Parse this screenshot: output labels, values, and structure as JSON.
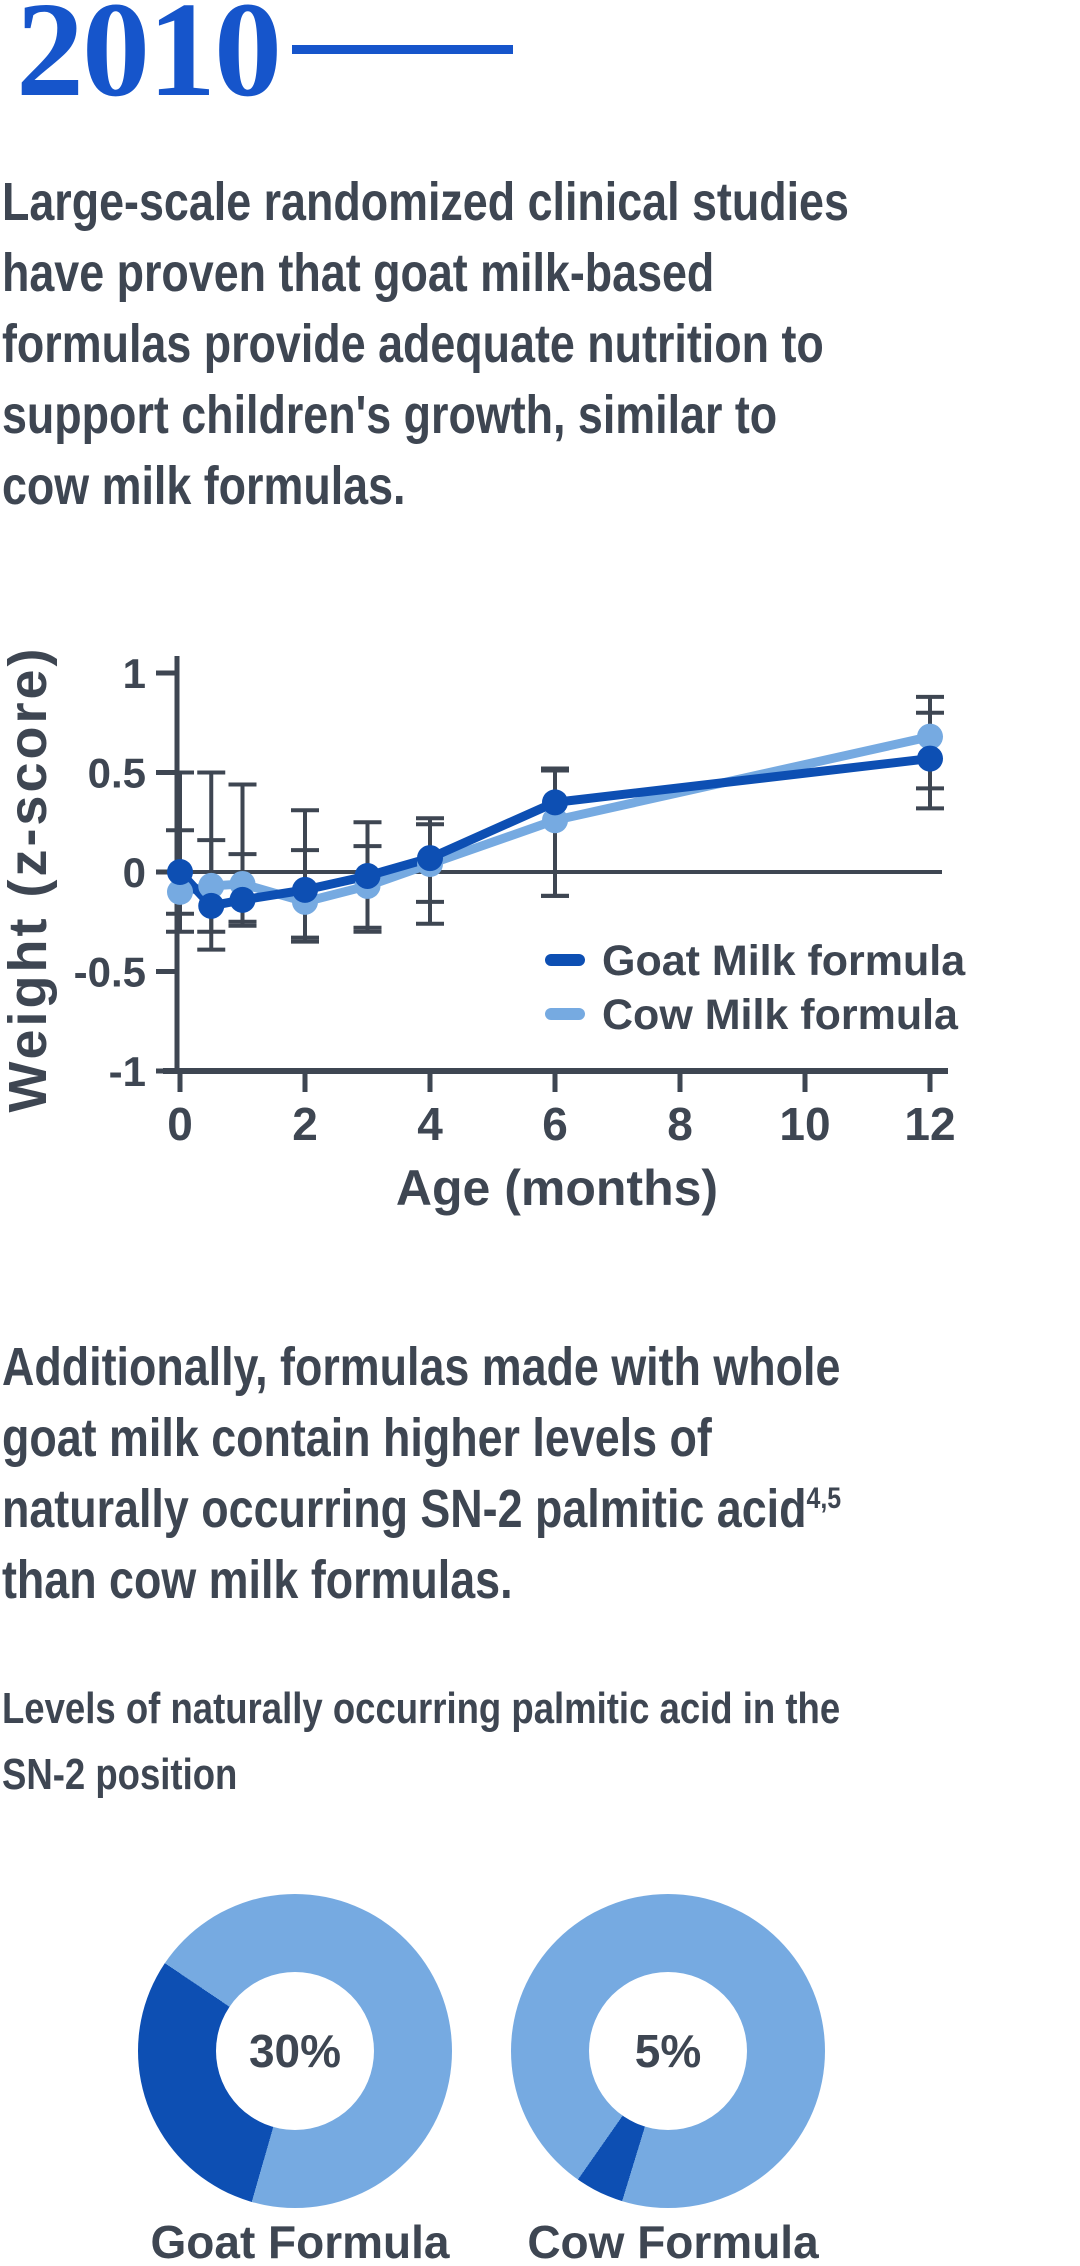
{
  "header": {
    "year": "2010"
  },
  "colors": {
    "accent_blue": "#1655cb",
    "dark_blue": "#0d4fb3",
    "light_blue": "#76aae1",
    "text": "#3e4652",
    "axis": "#3e4652"
  },
  "paragraph1": {
    "lines": [
      "Large-scale randomized clinical studies",
      "have proven that goat milk-based",
      "formulas provide adequate nutrition to",
      "support children's growth, similar to",
      "cow milk formulas."
    ]
  },
  "paragraph2": {
    "lines": [
      "Additionally, formulas made with whole",
      "goat milk contain higher levels of",
      "naturally occurring SN-2 palmitic acid",
      "than cow milk formulas."
    ],
    "superscript": "4,5"
  },
  "subheading": {
    "lines": [
      "Levels of naturally occurring palmitic acid in the",
      "SN-2 position"
    ]
  },
  "chart_data": [
    {
      "type": "line",
      "xlabel": "Age (months)",
      "ylabel": "Weight (z-score)",
      "x": [
        0,
        0.5,
        1,
        2,
        3,
        4,
        6,
        12
      ],
      "series": [
        {
          "name": "Goat Milk formula",
          "color_key": "dark_blue",
          "values": [
            0.0,
            -0.17,
            -0.14,
            -0.09,
            -0.02,
            0.07,
            0.35,
            0.57
          ],
          "err_lo": [
            -0.21,
            -0.39,
            -0.27,
            -0.35,
            -0.3,
            -0.26,
            -0.12,
            0.32
          ],
          "err_hi": [
            0.21,
            0.16,
            0.44,
            0.31,
            0.25,
            0.27,
            0.52,
            0.8
          ]
        },
        {
          "name": "Cow Milk formula",
          "color_key": "light_blue",
          "values": [
            -0.1,
            -0.07,
            -0.06,
            -0.15,
            -0.07,
            0.04,
            0.26,
            0.68
          ],
          "err_lo": [
            -0.3,
            -0.3,
            -0.25,
            -0.33,
            -0.28,
            -0.15,
            -0.12,
            0.42
          ],
          "err_hi": [
            0.5,
            0.5,
            0.09,
            0.11,
            0.13,
            0.24,
            0.51,
            0.88
          ]
        }
      ],
      "x_ticks": [
        0,
        2,
        4,
        6,
        8,
        10,
        12
      ],
      "x_tick_labels": [
        "0",
        "2",
        "4",
        "6",
        "8",
        "10",
        "12"
      ],
      "y_ticks": [
        1,
        0.5,
        0,
        -0.5,
        -1
      ],
      "y_tick_labels": [
        "1",
        "0.5",
        "0",
        "-0.5",
        "-1"
      ],
      "xlim": [
        0,
        12
      ],
      "ylim": [
        -1,
        1
      ],
      "grid": "zero-line-only",
      "legend_position": "inside-right"
    },
    {
      "type": "pie",
      "donut": true,
      "label": "Goat Formula",
      "center_text": "30%",
      "value_pct": 30,
      "slice_start_deg": 196,
      "slice_color_key": "dark_blue",
      "ring_color_key": "light_blue"
    },
    {
      "type": "pie",
      "donut": true,
      "label": "Cow Formula",
      "center_text": "5%",
      "value_pct": 5,
      "slice_start_deg": 197,
      "slice_color_key": "dark_blue",
      "ring_color_key": "light_blue"
    }
  ]
}
